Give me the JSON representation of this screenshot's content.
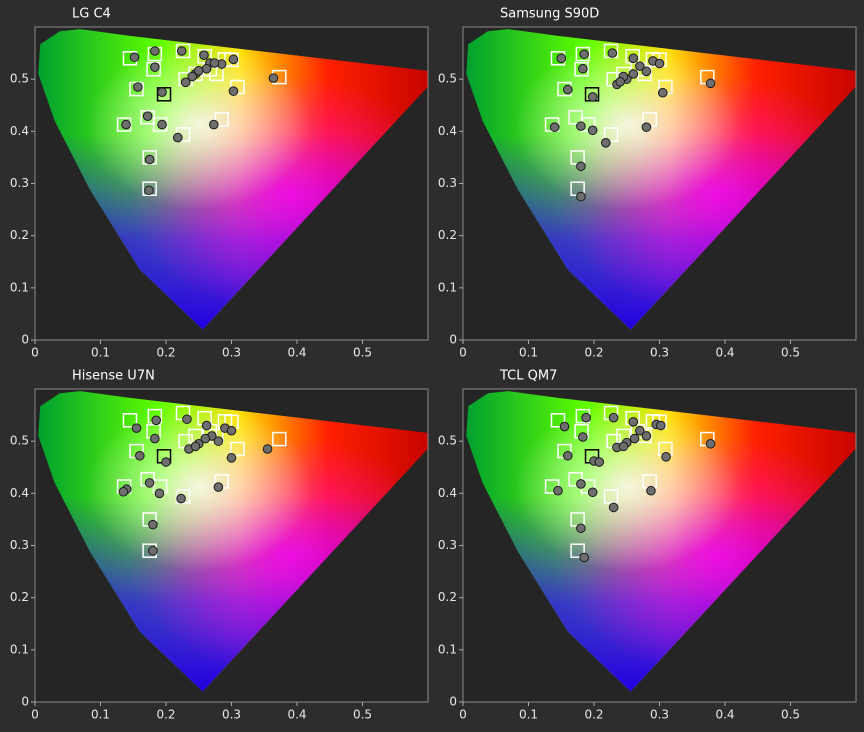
{
  "chart_data": [
    {
      "type": "scatter",
      "title": "LG C4",
      "xlim": [
        0,
        0.6
      ],
      "ylim": [
        0,
        0.6
      ],
      "xticks": [
        0,
        0.1,
        0.2,
        0.3,
        0.4,
        0.5
      ],
      "yticks": [
        0,
        0.1,
        0.2,
        0.3,
        0.4,
        0.5
      ],
      "series": [
        {
          "color": "#ffffff",
          "marker": "square",
          "x": [
            0.145,
            0.183,
            0.226,
            0.259,
            0.29,
            0.3,
            0.181,
            0.155,
            0.23,
            0.245,
            0.267,
            0.277,
            0.373,
            0.309,
            0.136,
            0.172,
            0.191,
            0.226,
            0.285,
            0.175,
            0.175
          ],
          "values": [
            0.54,
            0.548,
            0.554,
            0.544,
            0.538,
            0.537,
            0.519,
            0.481,
            0.5,
            0.51,
            0.519,
            0.51,
            0.504,
            0.485,
            0.413,
            0.427,
            0.413,
            0.394,
            0.423,
            0.35,
            0.29
          ]
        },
        {
          "color": "#000000",
          "marker": "square",
          "x": [
            0.197
          ],
          "values": [
            0.471
          ]
        },
        {
          "color": "#6e6e6e",
          "marker": "circle",
          "x": [
            0.152,
            0.183,
            0.183,
            0.224,
            0.258,
            0.285,
            0.303,
            0.157,
            0.194,
            0.23,
            0.245,
            0.267,
            0.274,
            0.364,
            0.303,
            0.139,
            0.172,
            0.194,
            0.218,
            0.273,
            0.175,
            0.174,
            0.25,
            0.24,
            0.262
          ],
          "values": [
            0.542,
            0.554,
            0.523,
            0.554,
            0.546,
            0.529,
            0.538,
            0.485,
            0.475,
            0.494,
            0.51,
            0.531,
            0.531,
            0.502,
            0.477,
            0.413,
            0.429,
            0.413,
            0.388,
            0.413,
            0.346,
            0.287,
            0.516,
            0.505,
            0.52
          ]
        }
      ]
    },
    {
      "type": "scatter",
      "title": "Samsung S90D",
      "xlim": [
        0,
        0.6
      ],
      "ylim": [
        0,
        0.6
      ],
      "xticks": [
        0,
        0.1,
        0.2,
        0.3,
        0.4,
        0.5
      ],
      "yticks": [
        0,
        0.1,
        0.2,
        0.3,
        0.4,
        0.5
      ],
      "series": [
        {
          "color": "#ffffff",
          "marker": "square",
          "x": [
            0.145,
            0.183,
            0.226,
            0.259,
            0.29,
            0.3,
            0.181,
            0.155,
            0.23,
            0.245,
            0.267,
            0.277,
            0.373,
            0.309,
            0.136,
            0.172,
            0.191,
            0.226,
            0.285,
            0.175,
            0.175
          ],
          "values": [
            0.54,
            0.548,
            0.554,
            0.544,
            0.538,
            0.537,
            0.519,
            0.481,
            0.5,
            0.51,
            0.519,
            0.51,
            0.504,
            0.485,
            0.413,
            0.427,
            0.413,
            0.394,
            0.423,
            0.35,
            0.29
          ]
        },
        {
          "color": "#000000",
          "marker": "square",
          "x": [
            0.197
          ],
          "values": [
            0.471
          ]
        },
        {
          "color": "#6e6e6e",
          "marker": "circle",
          "x": [
            0.15,
            0.185,
            0.183,
            0.228,
            0.26,
            0.29,
            0.3,
            0.16,
            0.198,
            0.235,
            0.25,
            0.27,
            0.28,
            0.378,
            0.305,
            0.14,
            0.18,
            0.198,
            0.218,
            0.28,
            0.18,
            0.18,
            0.245,
            0.26,
            0.24
          ],
          "values": [
            0.54,
            0.548,
            0.52,
            0.55,
            0.54,
            0.535,
            0.53,
            0.48,
            0.466,
            0.49,
            0.5,
            0.525,
            0.515,
            0.492,
            0.474,
            0.408,
            0.41,
            0.402,
            0.378,
            0.408,
            0.333,
            0.275,
            0.505,
            0.51,
            0.495
          ]
        }
      ]
    },
    {
      "type": "scatter",
      "title": "Hisense U7N",
      "xlim": [
        0,
        0.6
      ],
      "ylim": [
        0,
        0.6
      ],
      "xticks": [
        0,
        0.1,
        0.2,
        0.3,
        0.4,
        0.5
      ],
      "yticks": [
        0,
        0.1,
        0.2,
        0.3,
        0.4,
        0.5
      ],
      "series": [
        {
          "color": "#ffffff",
          "marker": "square",
          "x": [
            0.145,
            0.183,
            0.226,
            0.259,
            0.29,
            0.3,
            0.181,
            0.155,
            0.23,
            0.245,
            0.267,
            0.277,
            0.373,
            0.309,
            0.136,
            0.172,
            0.191,
            0.226,
            0.285,
            0.175,
            0.175
          ],
          "values": [
            0.54,
            0.548,
            0.554,
            0.544,
            0.538,
            0.537,
            0.519,
            0.481,
            0.5,
            0.51,
            0.519,
            0.51,
            0.504,
            0.485,
            0.413,
            0.427,
            0.413,
            0.394,
            0.423,
            0.35,
            0.29
          ]
        },
        {
          "color": "#000000",
          "marker": "square",
          "x": [
            0.197
          ],
          "values": [
            0.471
          ]
        },
        {
          "color": "#6e6e6e",
          "marker": "circle",
          "x": [
            0.155,
            0.185,
            0.183,
            0.232,
            0.262,
            0.29,
            0.3,
            0.16,
            0.2,
            0.235,
            0.25,
            0.27,
            0.28,
            0.355,
            0.3,
            0.14,
            0.175,
            0.19,
            0.223,
            0.28,
            0.18,
            0.18,
            0.245,
            0.26,
            0.135
          ],
          "values": [
            0.525,
            0.54,
            0.505,
            0.542,
            0.53,
            0.525,
            0.52,
            0.472,
            0.46,
            0.485,
            0.495,
            0.51,
            0.5,
            0.485,
            0.468,
            0.408,
            0.42,
            0.4,
            0.39,
            0.412,
            0.34,
            0.29,
            0.49,
            0.505,
            0.403
          ]
        }
      ]
    },
    {
      "type": "scatter",
      "title": "TCL QM7",
      "xlim": [
        0,
        0.6
      ],
      "ylim": [
        0,
        0.6
      ],
      "xticks": [
        0,
        0.1,
        0.2,
        0.3,
        0.4,
        0.5
      ],
      "yticks": [
        0,
        0.1,
        0.2,
        0.3,
        0.4,
        0.5
      ],
      "series": [
        {
          "color": "#ffffff",
          "marker": "square",
          "x": [
            0.145,
            0.183,
            0.226,
            0.259,
            0.29,
            0.3,
            0.181,
            0.155,
            0.23,
            0.245,
            0.267,
            0.277,
            0.373,
            0.309,
            0.136,
            0.172,
            0.191,
            0.226,
            0.285,
            0.175,
            0.175
          ],
          "values": [
            0.54,
            0.548,
            0.554,
            0.544,
            0.538,
            0.537,
            0.519,
            0.481,
            0.5,
            0.51,
            0.519,
            0.51,
            0.504,
            0.485,
            0.413,
            0.427,
            0.413,
            0.394,
            0.423,
            0.35,
            0.29
          ]
        },
        {
          "color": "#000000",
          "marker": "square",
          "x": [
            0.197
          ],
          "values": [
            0.471
          ]
        },
        {
          "color": "#6e6e6e",
          "marker": "circle",
          "x": [
            0.155,
            0.188,
            0.183,
            0.23,
            0.26,
            0.295,
            0.302,
            0.16,
            0.2,
            0.235,
            0.25,
            0.27,
            0.28,
            0.378,
            0.31,
            0.145,
            0.18,
            0.198,
            0.23,
            0.287,
            0.18,
            0.185,
            0.245,
            0.262,
            0.208
          ],
          "values": [
            0.528,
            0.545,
            0.508,
            0.545,
            0.537,
            0.532,
            0.53,
            0.472,
            0.462,
            0.488,
            0.497,
            0.52,
            0.51,
            0.495,
            0.47,
            0.405,
            0.418,
            0.402,
            0.373,
            0.405,
            0.333,
            0.277,
            0.49,
            0.505,
            0.46
          ]
        }
      ]
    }
  ]
}
